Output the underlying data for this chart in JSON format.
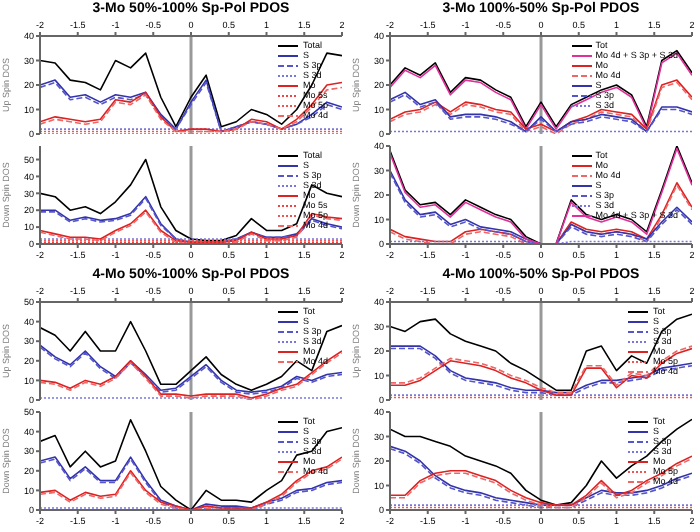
{
  "chart_data": [
    {
      "type": "line",
      "title": "3-Mo 50%-100% Sp-Pol PDOS",
      "ylabel": "Up Spin DOS",
      "x": [
        -2,
        -1.8,
        -1.6,
        -1.4,
        -1.2,
        -1,
        -0.8,
        -0.6,
        -0.4,
        -0.2,
        0,
        0.2,
        0.4,
        0.6,
        0.8,
        1,
        1.2,
        1.4,
        1.6,
        1.8,
        2
      ],
      "xlim": [
        -2,
        2
      ],
      "xticks": [
        -2,
        -1.5,
        -1,
        -0.5,
        0,
        0.5,
        1,
        1.5,
        2
      ],
      "ylim": [
        0,
        40
      ],
      "yticks": [
        0,
        10,
        20,
        30,
        40
      ],
      "legend": "top right",
      "ref_lines": [
        {
          "axis": "x",
          "value": 0,
          "color": "#999999"
        }
      ],
      "series": [
        {
          "name": "Total",
          "color": "#000000",
          "line_style": "solid",
          "values": [
            30,
            29,
            22,
            21,
            18,
            30,
            27,
            33,
            15,
            3,
            15,
            24,
            3,
            5,
            10,
            8,
            4,
            10,
            20,
            33,
            32
          ]
        },
        {
          "name": "S",
          "color": "#3333aa",
          "line_style": "solid",
          "values": [
            20,
            22,
            15,
            16,
            13,
            16,
            15,
            17,
            8,
            2,
            13,
            22,
            1,
            3,
            5,
            4,
            2,
            4,
            8,
            13,
            11
          ]
        },
        {
          "name": "S 3p",
          "color": "#5555cc",
          "line_style": "dashed",
          "values": [
            19,
            21,
            14,
            15,
            12,
            15,
            14,
            16,
            7,
            2,
            12,
            21,
            1,
            3,
            5,
            4,
            2,
            4,
            7,
            12,
            10
          ]
        },
        {
          "name": "S 3d",
          "color": "#7777dd",
          "line_style": "dotted",
          "values": [
            2,
            2,
            2,
            2,
            2,
            2,
            2,
            2,
            2,
            2,
            2,
            2,
            2,
            2,
            2,
            2,
            2,
            2,
            2,
            2,
            2
          ]
        },
        {
          "name": "Mo",
          "color": "#dd2222",
          "line_style": "solid",
          "values": [
            5,
            7,
            6,
            5,
            6,
            14,
            13,
            17,
            7,
            1,
            2,
            2,
            1,
            2,
            6,
            5,
            2,
            6,
            12,
            20,
            21
          ]
        },
        {
          "name": "Mo 5s",
          "color": "#ee4444",
          "line_style": "dotted",
          "values": [
            0,
            0,
            0,
            0,
            0,
            0,
            0,
            0,
            0,
            0,
            0,
            0,
            0,
            0,
            0,
            0,
            0,
            0,
            0,
            0,
            0
          ]
        },
        {
          "name": "Mo 5p",
          "color": "#ee5555",
          "line_style": "dotted",
          "values": [
            1,
            1,
            1,
            1,
            1,
            1,
            1,
            1,
            1,
            1,
            1,
            1,
            1,
            1,
            1,
            1,
            1,
            1,
            1,
            1,
            1
          ]
        },
        {
          "name": "Mo 4d",
          "color": "#ee6666",
          "line_style": "dashed",
          "values": [
            4,
            6,
            5,
            4,
            5,
            13,
            12,
            16,
            6,
            1,
            1,
            1,
            1,
            2,
            5,
            4,
            2,
            5,
            11,
            18,
            19
          ]
        }
      ]
    },
    {
      "type": "line",
      "ylabel": "Down Spin DOS",
      "x": [
        -2,
        -1.8,
        -1.6,
        -1.4,
        -1.2,
        -1,
        -0.8,
        -0.6,
        -0.4,
        -0.2,
        0,
        0.2,
        0.4,
        0.6,
        0.8,
        1,
        1.2,
        1.4,
        1.6,
        1.8,
        2
      ],
      "xlim": [
        -2,
        2
      ],
      "xticks": [
        -2,
        -1.5,
        -1,
        -0.5,
        0,
        0.5,
        1,
        1.5,
        2
      ],
      "ylim": [
        0,
        58
      ],
      "yticks": [
        0,
        10,
        20,
        30,
        40,
        50
      ],
      "legend": "top right",
      "ref_lines": [
        {
          "axis": "x",
          "value": 0,
          "color": "#999999"
        }
      ],
      "series": [
        {
          "name": "Total",
          "color": "#000000",
          "line_style": "solid",
          "values": [
            30,
            28,
            20,
            22,
            18,
            25,
            35,
            50,
            22,
            8,
            3,
            2,
            2,
            5,
            15,
            8,
            8,
            12,
            35,
            30,
            28
          ]
        },
        {
          "name": "S",
          "color": "#3333aa",
          "line_style": "solid",
          "values": [
            20,
            20,
            14,
            16,
            14,
            15,
            18,
            28,
            12,
            3,
            1,
            1,
            1,
            3,
            7,
            4,
            4,
            6,
            15,
            12,
            10
          ]
        },
        {
          "name": "S 3p",
          "color": "#5555cc",
          "line_style": "dashed",
          "values": [
            19,
            19,
            13,
            15,
            13,
            14,
            17,
            27,
            11,
            3,
            1,
            1,
            1,
            3,
            6,
            4,
            4,
            5,
            14,
            11,
            9
          ]
        },
        {
          "name": "S 3d",
          "color": "#7777dd",
          "line_style": "dotted",
          "values": [
            3,
            3,
            3,
            3,
            3,
            3,
            3,
            3,
            3,
            3,
            3,
            3,
            3,
            3,
            3,
            3,
            3,
            3,
            3,
            3,
            3
          ]
        },
        {
          "name": "Mo",
          "color": "#dd2222",
          "line_style": "solid",
          "values": [
            8,
            6,
            4,
            4,
            3,
            8,
            12,
            20,
            8,
            2,
            1,
            1,
            1,
            2,
            7,
            3,
            3,
            5,
            18,
            16,
            15
          ]
        },
        {
          "name": "Mo 5s",
          "color": "#ee4444",
          "line_style": "dotted",
          "values": [
            1,
            1,
            1,
            1,
            1,
            1,
            1,
            1,
            1,
            1,
            1,
            1,
            1,
            1,
            1,
            1,
            1,
            1,
            1,
            1,
            1
          ]
        },
        {
          "name": "Mo 5p",
          "color": "#ee5555",
          "line_style": "dotted",
          "values": [
            2,
            2,
            2,
            2,
            2,
            2,
            2,
            2,
            2,
            2,
            2,
            2,
            2,
            2,
            2,
            2,
            2,
            2,
            2,
            2,
            2
          ]
        },
        {
          "name": "Mo 4d",
          "color": "#ee6666",
          "line_style": "dashed",
          "values": [
            7,
            5,
            3,
            3,
            2,
            7,
            11,
            19,
            7,
            1,
            0,
            0,
            0,
            1,
            6,
            2,
            2,
            4,
            17,
            15,
            14
          ]
        }
      ]
    },
    {
      "type": "line",
      "title": "3-Mo 100%-50% Sp-Pol PDOS",
      "ylabel": "Up Spin DOS",
      "x": [
        -2,
        -1.8,
        -1.6,
        -1.4,
        -1.2,
        -1,
        -0.8,
        -0.6,
        -0.4,
        -0.2,
        0,
        0.2,
        0.4,
        0.6,
        0.8,
        1,
        1.2,
        1.4,
        1.6,
        1.8,
        2
      ],
      "xlim": [
        -2,
        2
      ],
      "xticks": [
        -2,
        -1.5,
        -1,
        -0.5,
        0,
        0.5,
        1,
        1.5,
        2
      ],
      "ylim": [
        0,
        40
      ],
      "yticks": [
        0,
        10,
        20,
        30,
        40
      ],
      "legend": "top right",
      "ref_lines": [
        {
          "axis": "x",
          "value": 0,
          "color": "#999999"
        }
      ],
      "series": [
        {
          "name": "Tot",
          "color": "#000000",
          "line_style": "solid",
          "values": [
            20,
            27,
            24,
            29,
            17,
            23,
            22,
            18,
            15,
            3,
            13,
            3,
            12,
            15,
            18,
            20,
            16,
            3,
            30,
            34,
            25
          ]
        },
        {
          "name": "Mo 4d + S 3p + S 3d",
          "color": "#e0309a",
          "line_style": "solid",
          "values": [
            19,
            26,
            23,
            28,
            16,
            22,
            21,
            17,
            14,
            2,
            12,
            2,
            11,
            14,
            17,
            19,
            15,
            2,
            29,
            33,
            24
          ]
        },
        {
          "name": "Mo",
          "color": "#dd2222",
          "line_style": "solid",
          "values": [
            6,
            9,
            10,
            13,
            9,
            13,
            12,
            10,
            9,
            2,
            4,
            1,
            5,
            7,
            10,
            9,
            8,
            2,
            20,
            22,
            15
          ]
        },
        {
          "name": "Mo 4d",
          "color": "#ee6666",
          "line_style": "dashed",
          "values": [
            5,
            8,
            9,
            12,
            8,
            12,
            11,
            9,
            8,
            1,
            3,
            0,
            4,
            6,
            9,
            8,
            7,
            1,
            19,
            21,
            14
          ]
        },
        {
          "name": "S",
          "color": "#3333aa",
          "line_style": "solid",
          "values": [
            14,
            17,
            12,
            14,
            7,
            8,
            8,
            7,
            5,
            1,
            7,
            1,
            5,
            6,
            8,
            7,
            6,
            1,
            11,
            11,
            9
          ]
        },
        {
          "name": "S 3p",
          "color": "#5555cc",
          "line_style": "dashed",
          "values": [
            13,
            16,
            11,
            13,
            6,
            7,
            7,
            6,
            4,
            1,
            6,
            1,
            4,
            5,
            7,
            6,
            5,
            1,
            10,
            10,
            8
          ]
        },
        {
          "name": "S 3d",
          "color": "#7777dd",
          "line_style": "dotted",
          "values": [
            1,
            1,
            1,
            1,
            1,
            1,
            1,
            1,
            1,
            1,
            1,
            1,
            1,
            1,
            1,
            1,
            1,
            1,
            1,
            1,
            1
          ]
        }
      ]
    },
    {
      "type": "line",
      "ylabel": "Down Spin DOS",
      "x": [
        -2,
        -1.8,
        -1.6,
        -1.4,
        -1.2,
        -1,
        -0.8,
        -0.6,
        -0.4,
        -0.2,
        0,
        0.2,
        0.4,
        0.6,
        0.8,
        1,
        1.2,
        1.4,
        1.6,
        1.8,
        2
      ],
      "xlim": [
        -2,
        2
      ],
      "xticks": [
        -2,
        -1.5,
        -1,
        -0.5,
        0,
        0.5,
        1,
        1.5,
        2
      ],
      "ylim": [
        0,
        40
      ],
      "yticks": [
        0,
        10,
        20,
        30,
        40
      ],
      "legend": "top right",
      "ref_lines": [
        {
          "axis": "x",
          "value": 0,
          "color": "#999999"
        }
      ],
      "series": [
        {
          "name": "Tot",
          "color": "#000000",
          "line_style": "solid",
          "values": [
            38,
            22,
            16,
            17,
            12,
            18,
            15,
            12,
            10,
            3,
            0,
            0,
            18,
            12,
            10,
            12,
            10,
            5,
            22,
            40,
            25
          ]
        },
        {
          "name": "Mo",
          "color": "#dd2222",
          "line_style": "solid",
          "values": [
            6,
            3,
            2,
            1,
            1,
            5,
            6,
            5,
            4,
            1,
            0,
            0,
            9,
            6,
            5,
            6,
            5,
            2,
            12,
            25,
            15
          ]
        },
        {
          "name": "Mo 4d",
          "color": "#ee6666",
          "line_style": "dashed",
          "values": [
            5,
            2,
            1,
            0,
            0,
            4,
            5,
            4,
            3,
            0,
            0,
            0,
            8,
            5,
            4,
            5,
            4,
            1,
            11,
            24,
            14
          ]
        },
        {
          "name": "S",
          "color": "#3333aa",
          "line_style": "solid",
          "values": [
            30,
            18,
            12,
            13,
            8,
            10,
            7,
            6,
            5,
            2,
            0,
            0,
            8,
            5,
            4,
            5,
            4,
            2,
            9,
            15,
            9
          ]
        },
        {
          "name": "S 3p",
          "color": "#5555cc",
          "line_style": "dashed",
          "values": [
            29,
            17,
            11,
            12,
            7,
            9,
            6,
            5,
            4,
            1,
            0,
            0,
            7,
            4,
            3,
            4,
            3,
            1,
            8,
            14,
            8
          ]
        },
        {
          "name": "S 3d",
          "color": "#7777dd",
          "line_style": "dotted",
          "values": [
            1,
            1,
            1,
            1,
            1,
            1,
            1,
            1,
            1,
            1,
            0,
            0,
            1,
            1,
            1,
            1,
            1,
            1,
            1,
            1,
            1
          ]
        },
        {
          "name": "Mo 4d + S 3p + S 3d",
          "color": "#e0309a",
          "line_style": "solid",
          "values": [
            37,
            21,
            15,
            16,
            11,
            17,
            14,
            11,
            9,
            2,
            0,
            0,
            17,
            11,
            9,
            11,
            9,
            4,
            21,
            39,
            24
          ]
        }
      ]
    },
    {
      "type": "line",
      "title": "4-Mo 50%-100% Sp-Pol PDOS",
      "ylabel": "Up Spin DOS",
      "x": [
        -2,
        -1.8,
        -1.6,
        -1.4,
        -1.2,
        -1,
        -0.8,
        -0.6,
        -0.4,
        -0.2,
        0,
        0.2,
        0.4,
        0.6,
        0.8,
        1,
        1.2,
        1.4,
        1.6,
        1.8,
        2
      ],
      "xlim": [
        -2,
        2
      ],
      "xticks": [
        -2,
        -1.5,
        -1,
        -0.5,
        0,
        0.5,
        1,
        1.5,
        2
      ],
      "ylim": [
        0,
        50
      ],
      "yticks": [
        0,
        10,
        20,
        30,
        40,
        50
      ],
      "legend": "top right",
      "ref_lines": [
        {
          "axis": "x",
          "value": 0,
          "color": "#999999"
        }
      ],
      "series": [
        {
          "name": "Tot",
          "color": "#000000",
          "line_style": "solid",
          "values": [
            37,
            33,
            25,
            35,
            25,
            25,
            40,
            25,
            8,
            8,
            15,
            22,
            13,
            8,
            5,
            8,
            12,
            20,
            15,
            35,
            38
          ]
        },
        {
          "name": "S",
          "color": "#3333aa",
          "line_style": "solid",
          "values": [
            28,
            22,
            18,
            25,
            17,
            12,
            20,
            13,
            5,
            6,
            12,
            18,
            10,
            5,
            4,
            5,
            7,
            12,
            10,
            13,
            14
          ]
        },
        {
          "name": "S 3p",
          "color": "#5555cc",
          "line_style": "dashed",
          "values": [
            27,
            21,
            17,
            24,
            16,
            11,
            19,
            12,
            4,
            5,
            11,
            17,
            9,
            4,
            3,
            4,
            6,
            11,
            9,
            12,
            13
          ]
        },
        {
          "name": "S 3d",
          "color": "#7777dd",
          "line_style": "dotted",
          "values": [
            1,
            1,
            1,
            1,
            1,
            1,
            1,
            1,
            1,
            1,
            1,
            1,
            1,
            1,
            1,
            1,
            1,
            1,
            1,
            1,
            1
          ]
        },
        {
          "name": "Mo",
          "color": "#dd2222",
          "line_style": "solid",
          "values": [
            10,
            9,
            6,
            10,
            8,
            12,
            20,
            12,
            3,
            3,
            2,
            3,
            3,
            3,
            1,
            3,
            6,
            8,
            14,
            20,
            25
          ]
        },
        {
          "name": "Mo 4d",
          "color": "#ee6666",
          "line_style": "dashed",
          "values": [
            9,
            8,
            5,
            9,
            7,
            11,
            19,
            11,
            2,
            2,
            1,
            2,
            2,
            2,
            0,
            2,
            5,
            7,
            13,
            19,
            24
          ]
        }
      ]
    },
    {
      "type": "line",
      "ylabel": "Down Spin DOS",
      "x": [
        -2,
        -1.8,
        -1.6,
        -1.4,
        -1.2,
        -1,
        -0.8,
        -0.6,
        -0.4,
        -0.2,
        0,
        0.2,
        0.4,
        0.6,
        0.8,
        1,
        1.2,
        1.4,
        1.6,
        1.8,
        2
      ],
      "xlim": [
        -2,
        2
      ],
      "xticks": [
        -2,
        -1.5,
        -1,
        -0.5,
        0,
        0.5,
        1,
        1.5,
        2
      ],
      "ylim": [
        0,
        50
      ],
      "yticks": [
        0,
        10,
        20,
        30,
        40,
        50
      ],
      "legend": "top right",
      "ref_lines": [
        {
          "axis": "x",
          "value": 0,
          "color": "#999999"
        }
      ],
      "series": [
        {
          "name": "Tot",
          "color": "#000000",
          "line_style": "solid",
          "values": [
            35,
            38,
            22,
            30,
            22,
            25,
            46,
            30,
            12,
            5,
            0,
            10,
            5,
            5,
            4,
            10,
            15,
            28,
            30,
            40,
            42
          ]
        },
        {
          "name": "S",
          "color": "#3333aa",
          "line_style": "solid",
          "values": [
            25,
            27,
            16,
            22,
            15,
            15,
            27,
            15,
            5,
            2,
            0,
            3,
            2,
            2,
            1,
            4,
            6,
            10,
            11,
            14,
            15
          ]
        },
        {
          "name": "S 3p",
          "color": "#5555cc",
          "line_style": "dashed",
          "values": [
            24,
            26,
            15,
            21,
            14,
            14,
            26,
            14,
            4,
            1,
            0,
            2,
            1,
            1,
            0,
            3,
            5,
            9,
            10,
            13,
            14
          ]
        },
        {
          "name": "S 3d",
          "color": "#7777dd",
          "line_style": "dotted",
          "values": [
            1,
            1,
            1,
            1,
            1,
            1,
            1,
            1,
            1,
            1,
            0,
            1,
            1,
            1,
            1,
            1,
            1,
            1,
            1,
            1,
            1
          ]
        },
        {
          "name": "Mo",
          "color": "#dd2222",
          "line_style": "solid",
          "values": [
            9,
            10,
            5,
            9,
            7,
            8,
            20,
            10,
            4,
            2,
            0,
            2,
            1,
            1,
            1,
            4,
            8,
            15,
            20,
            22,
            27
          ]
        },
        {
          "name": "Mo 4d",
          "color": "#ee6666",
          "line_style": "dashed",
          "values": [
            8,
            9,
            4,
            8,
            6,
            7,
            19,
            9,
            3,
            1,
            0,
            1,
            0,
            0,
            0,
            3,
            7,
            14,
            19,
            21,
            26
          ]
        }
      ]
    },
    {
      "type": "line",
      "title": "4-Mo 100%-50% Sp-Pol PDOS",
      "ylabel": "Up Spin DOS",
      "x": [
        -2,
        -1.8,
        -1.6,
        -1.4,
        -1.2,
        -1,
        -0.8,
        -0.6,
        -0.4,
        -0.2,
        0,
        0.2,
        0.4,
        0.6,
        0.8,
        1,
        1.2,
        1.4,
        1.6,
        1.8,
        2
      ],
      "xlim": [
        -2,
        2
      ],
      "xticks": [
        -2,
        -1.5,
        -1,
        -0.5,
        0,
        0.5,
        1,
        1.5,
        2
      ],
      "ylim": [
        0,
        40
      ],
      "yticks": [
        0,
        10,
        20,
        30,
        40
      ],
      "legend": "top right",
      "ref_lines": [
        {
          "axis": "x",
          "value": 0,
          "color": "#999999"
        }
      ],
      "series": [
        {
          "name": "Tot",
          "color": "#000000",
          "line_style": "solid",
          "values": [
            30,
            28,
            32,
            33,
            27,
            24,
            22,
            20,
            15,
            12,
            8,
            4,
            4,
            20,
            22,
            12,
            18,
            15,
            28,
            33,
            35
          ]
        },
        {
          "name": "S",
          "color": "#3333aa",
          "line_style": "solid",
          "values": [
            22,
            22,
            22,
            18,
            12,
            9,
            8,
            7,
            5,
            4,
            4,
            3,
            3,
            6,
            8,
            8,
            9,
            10,
            13,
            14,
            15
          ]
        },
        {
          "name": "S 3p",
          "color": "#5555cc",
          "line_style": "dashed",
          "values": [
            21,
            21,
            21,
            17,
            11,
            8,
            7,
            6,
            4,
            3,
            3,
            2,
            2,
            5,
            7,
            7,
            8,
            9,
            12,
            13,
            14
          ]
        },
        {
          "name": "S 3d",
          "color": "#7777dd",
          "line_style": "dotted",
          "values": [
            2,
            2,
            2,
            2,
            2,
            2,
            2,
            2,
            2,
            2,
            2,
            2,
            2,
            2,
            2,
            2,
            2,
            2,
            2,
            2,
            2
          ]
        },
        {
          "name": "Mo",
          "color": "#dd2222",
          "line_style": "solid",
          "values": [
            6,
            6,
            8,
            12,
            16,
            15,
            14,
            12,
            9,
            7,
            4,
            2,
            2,
            13,
            13,
            5,
            10,
            9,
            15,
            19,
            21
          ]
        },
        {
          "name": "Mo 5p",
          "color": "#ee5555",
          "line_style": "dotted",
          "values": [
            1,
            1,
            1,
            1,
            1,
            1,
            1,
            1,
            1,
            1,
            1,
            1,
            1,
            1,
            1,
            1,
            1,
            1,
            1,
            1,
            1
          ]
        },
        {
          "name": "Mo 4d",
          "color": "#ee6666",
          "line_style": "dashed",
          "values": [
            7,
            7,
            9,
            13,
            17,
            16,
            15,
            13,
            10,
            8,
            5,
            3,
            3,
            14,
            14,
            6,
            11,
            10,
            16,
            20,
            22
          ]
        }
      ]
    },
    {
      "type": "line",
      "ylabel": "Down Spin DOS",
      "x": [
        -2,
        -1.8,
        -1.6,
        -1.4,
        -1.2,
        -1,
        -0.8,
        -0.6,
        -0.4,
        -0.2,
        0,
        0.2,
        0.4,
        0.6,
        0.8,
        1,
        1.2,
        1.4,
        1.6,
        1.8,
        2
      ],
      "xlim": [
        -2,
        2
      ],
      "xticks": [
        -2,
        -1.5,
        -1,
        -0.5,
        0,
        0.5,
        1,
        1.5,
        2
      ],
      "ylim": [
        0,
        40
      ],
      "yticks": [
        0,
        10,
        20,
        30,
        40
      ],
      "legend": "top right",
      "ref_lines": [
        {
          "axis": "x",
          "value": 0,
          "color": "#999999"
        }
      ],
      "series": [
        {
          "name": "Tot",
          "color": "#000000",
          "line_style": "solid",
          "values": [
            33,
            30,
            30,
            28,
            26,
            22,
            20,
            18,
            15,
            8,
            4,
            2,
            3,
            10,
            20,
            13,
            18,
            22,
            28,
            33,
            37
          ]
        },
        {
          "name": "S",
          "color": "#3333aa",
          "line_style": "solid",
          "values": [
            26,
            24,
            20,
            14,
            10,
            8,
            7,
            5,
            4,
            3,
            2,
            2,
            2,
            5,
            8,
            7,
            7,
            8,
            10,
            13,
            15
          ]
        },
        {
          "name": "S 3p",
          "color": "#5555cc",
          "line_style": "dashed",
          "values": [
            25,
            23,
            19,
            13,
            9,
            7,
            6,
            4,
            3,
            2,
            1,
            1,
            1,
            4,
            7,
            6,
            6,
            7,
            9,
            12,
            14
          ]
        },
        {
          "name": "S 3d",
          "color": "#7777dd",
          "line_style": "dotted",
          "values": [
            2,
            2,
            2,
            2,
            2,
            2,
            2,
            2,
            2,
            2,
            2,
            2,
            2,
            2,
            2,
            2,
            2,
            2,
            2,
            2,
            2
          ]
        },
        {
          "name": "Mo",
          "color": "#dd2222",
          "line_style": "solid",
          "values": [
            6,
            6,
            12,
            15,
            16,
            16,
            14,
            12,
            8,
            5,
            3,
            2,
            2,
            6,
            12,
            6,
            8,
            12,
            15,
            19,
            22
          ]
        },
        {
          "name": "Mo 5p",
          "color": "#ee5555",
          "line_style": "dotted",
          "values": [
            1,
            1,
            1,
            1,
            1,
            1,
            1,
            1,
            1,
            1,
            1,
            1,
            1,
            1,
            1,
            1,
            1,
            1,
            1,
            1,
            1
          ]
        },
        {
          "name": "Mo 4d",
          "color": "#ee6666",
          "line_style": "dashed",
          "values": [
            5,
            5,
            11,
            14,
            15,
            15,
            13,
            11,
            7,
            4,
            2,
            1,
            1,
            5,
            11,
            5,
            7,
            11,
            14,
            18,
            21
          ]
        }
      ]
    }
  ]
}
